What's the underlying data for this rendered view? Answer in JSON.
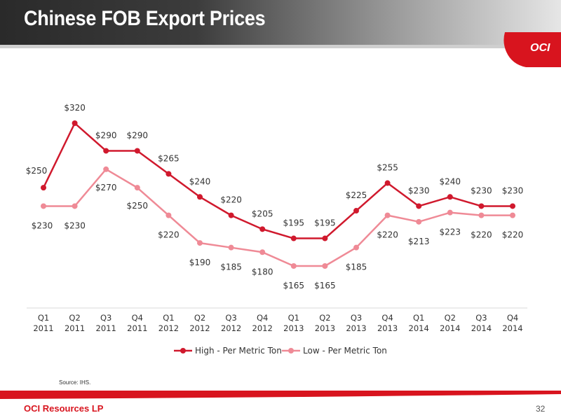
{
  "page": {
    "title": "Chinese FOB Export Prices",
    "logo_text": "OCI",
    "source": "Source: IHS.",
    "footer_company": "OCI Resources LP",
    "page_number": "32"
  },
  "colors": {
    "high": "#d0192d",
    "low": "#ef8a96",
    "brand_red": "#d8141e"
  },
  "chart_data": {
    "type": "line",
    "categories": [
      [
        "Q1",
        "2011"
      ],
      [
        "Q2",
        "2011"
      ],
      [
        "Q3",
        "2011"
      ],
      [
        "Q4",
        "2011"
      ],
      [
        "Q1",
        "2012"
      ],
      [
        "Q2",
        "2012"
      ],
      [
        "Q3",
        "2012"
      ],
      [
        "Q4",
        "2012"
      ],
      [
        "Q1",
        "2013"
      ],
      [
        "Q2",
        "2013"
      ],
      [
        "Q3",
        "2013"
      ],
      [
        "Q4",
        "2013"
      ],
      [
        "Q1",
        "2014"
      ],
      [
        "Q2",
        "2014"
      ],
      [
        "Q3",
        "2014"
      ],
      [
        "Q4",
        "2014"
      ]
    ],
    "series": [
      {
        "name": "High - Per Metric Ton",
        "values": [
          250,
          320,
          290,
          290,
          265,
          240,
          220,
          205,
          195,
          195,
          225,
          255,
          230,
          240,
          230,
          230
        ],
        "labels": [
          "$250",
          "$320",
          "$290",
          "$290",
          "$265",
          "$240",
          "$220",
          "$205",
          "$195",
          "$195",
          "$225",
          "$255",
          "$230",
          "$240",
          "$230",
          "$230"
        ]
      },
      {
        "name": "Low - Per Metric Ton",
        "values": [
          230,
          230,
          270,
          250,
          220,
          190,
          185,
          180,
          165,
          165,
          185,
          220,
          213,
          223,
          220,
          220
        ],
        "labels": [
          "$230",
          "$230",
          "$270",
          "$250",
          "$220",
          "$190",
          "$185",
          "$180",
          "$165",
          "$165",
          "$185",
          "$220",
          "$213",
          "$223",
          "$220",
          "$220"
        ]
      }
    ],
    "title": "",
    "xlabel": "",
    "ylabel": "",
    "ylim": [
      140,
      340
    ],
    "grid": false,
    "legend_position": "bottom"
  }
}
